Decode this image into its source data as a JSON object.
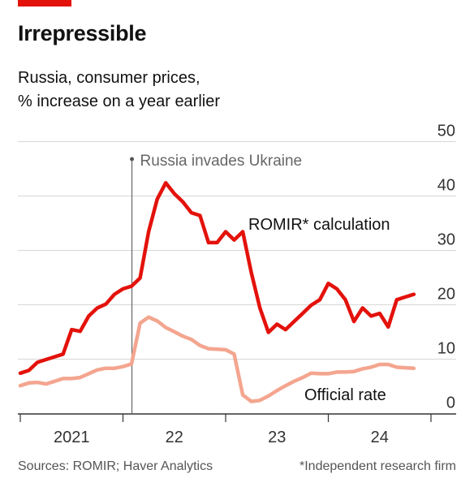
{
  "header": {
    "title": "Irrepressible",
    "subtitle_line1": "Russia, consumer prices,",
    "subtitle_line2": "% increase on a year earlier"
  },
  "footer": {
    "source": "Sources: ROMIR; Haver Analytics",
    "note": "*Independent research firm"
  },
  "colors": {
    "brand_red": "#e3120b",
    "romir": "#e3120b",
    "official": "#f4a58f",
    "grid": "#d7d7d7",
    "axis": "#333333"
  },
  "chart_data": {
    "type": "line",
    "title": "Irrepressible",
    "subtitle": "Russia, consumer prices, % increase on a year earlier",
    "ylim": [
      0,
      50
    ],
    "yticks": [
      0,
      10,
      20,
      30,
      40,
      50
    ],
    "grid": true,
    "xlim": [
      "2020-11",
      "2024-12"
    ],
    "x_year_ticks": [
      2021,
      2022,
      2023,
      2024,
      2025
    ],
    "x_tick_labels": [
      "2021",
      "22",
      "23",
      "24"
    ],
    "annotation": {
      "x": "2022-02",
      "label": "Russia invades Ukraine"
    },
    "series": [
      {
        "name": "ROMIR* calculation",
        "values": [
          [
            "2021-01",
            7.5
          ],
          [
            "2021-02",
            8.0
          ],
          [
            "2021-03",
            9.5
          ],
          [
            "2021-04",
            10.0
          ],
          [
            "2021-05",
            10.5
          ],
          [
            "2021-06",
            11.0
          ],
          [
            "2021-07",
            15.5
          ],
          [
            "2021-08",
            15.2
          ],
          [
            "2021-09",
            18.0
          ],
          [
            "2021-10",
            19.5
          ],
          [
            "2021-11",
            20.2
          ],
          [
            "2021-12",
            22.0
          ],
          [
            "2022-01",
            23.0
          ],
          [
            "2022-02",
            23.5
          ],
          [
            "2022-03",
            25.0
          ],
          [
            "2022-04",
            33.5
          ],
          [
            "2022-05",
            39.5
          ],
          [
            "2022-06",
            42.5
          ],
          [
            "2022-07",
            40.5
          ],
          [
            "2022-08",
            39.0
          ],
          [
            "2022-09",
            37.0
          ],
          [
            "2022-10",
            36.5
          ],
          [
            "2022-11",
            31.5
          ],
          [
            "2022-12",
            31.5
          ],
          [
            "2023-01",
            33.5
          ],
          [
            "2023-02",
            32.0
          ],
          [
            "2023-03",
            33.5
          ],
          [
            "2023-04",
            26.0
          ],
          [
            "2023-05",
            19.5
          ],
          [
            "2023-06",
            15.0
          ],
          [
            "2023-07",
            16.5
          ],
          [
            "2023-08",
            15.5
          ],
          [
            "2023-09",
            17.0
          ],
          [
            "2023-10",
            18.5
          ],
          [
            "2023-11",
            20.0
          ],
          [
            "2023-12",
            21.0
          ],
          [
            "2024-01",
            24.0
          ],
          [
            "2024-02",
            23.0
          ],
          [
            "2024-03",
            21.0
          ],
          [
            "2024-04",
            17.0
          ],
          [
            "2024-05",
            19.5
          ],
          [
            "2024-06",
            18.0
          ],
          [
            "2024-07",
            18.5
          ],
          [
            "2024-08",
            16.0
          ],
          [
            "2024-09",
            21.0
          ],
          [
            "2024-10",
            21.5
          ],
          [
            "2024-11",
            22.0
          ]
        ]
      },
      {
        "name": "Official rate",
        "values": [
          [
            "2021-01",
            5.2
          ],
          [
            "2021-02",
            5.7
          ],
          [
            "2021-03",
            5.8
          ],
          [
            "2021-04",
            5.5
          ],
          [
            "2021-05",
            6.0
          ],
          [
            "2021-06",
            6.5
          ],
          [
            "2021-07",
            6.5
          ],
          [
            "2021-08",
            6.7
          ],
          [
            "2021-09",
            7.4
          ],
          [
            "2021-10",
            8.1
          ],
          [
            "2021-11",
            8.4
          ],
          [
            "2021-12",
            8.4
          ],
          [
            "2022-01",
            8.7
          ],
          [
            "2022-02",
            9.2
          ],
          [
            "2022-03",
            16.7
          ],
          [
            "2022-04",
            17.8
          ],
          [
            "2022-05",
            17.1
          ],
          [
            "2022-06",
            15.9
          ],
          [
            "2022-07",
            15.1
          ],
          [
            "2022-08",
            14.3
          ],
          [
            "2022-09",
            13.7
          ],
          [
            "2022-10",
            12.6
          ],
          [
            "2022-11",
            12.0
          ],
          [
            "2022-12",
            11.9
          ],
          [
            "2023-01",
            11.8
          ],
          [
            "2023-02",
            11.0
          ],
          [
            "2023-03",
            3.5
          ],
          [
            "2023-04",
            2.3
          ],
          [
            "2023-05",
            2.5
          ],
          [
            "2023-06",
            3.3
          ],
          [
            "2023-07",
            4.3
          ],
          [
            "2023-08",
            5.2
          ],
          [
            "2023-09",
            6.0
          ],
          [
            "2023-10",
            6.7
          ],
          [
            "2023-11",
            7.5
          ],
          [
            "2023-12",
            7.4
          ],
          [
            "2024-01",
            7.4
          ],
          [
            "2024-02",
            7.7
          ],
          [
            "2024-03",
            7.7
          ],
          [
            "2024-04",
            7.8
          ],
          [
            "2024-05",
            8.3
          ],
          [
            "2024-06",
            8.6
          ],
          [
            "2024-07",
            9.1
          ],
          [
            "2024-08",
            9.1
          ],
          [
            "2024-09",
            8.6
          ],
          [
            "2024-10",
            8.5
          ],
          [
            "2024-11",
            8.4
          ]
        ]
      }
    ]
  }
}
